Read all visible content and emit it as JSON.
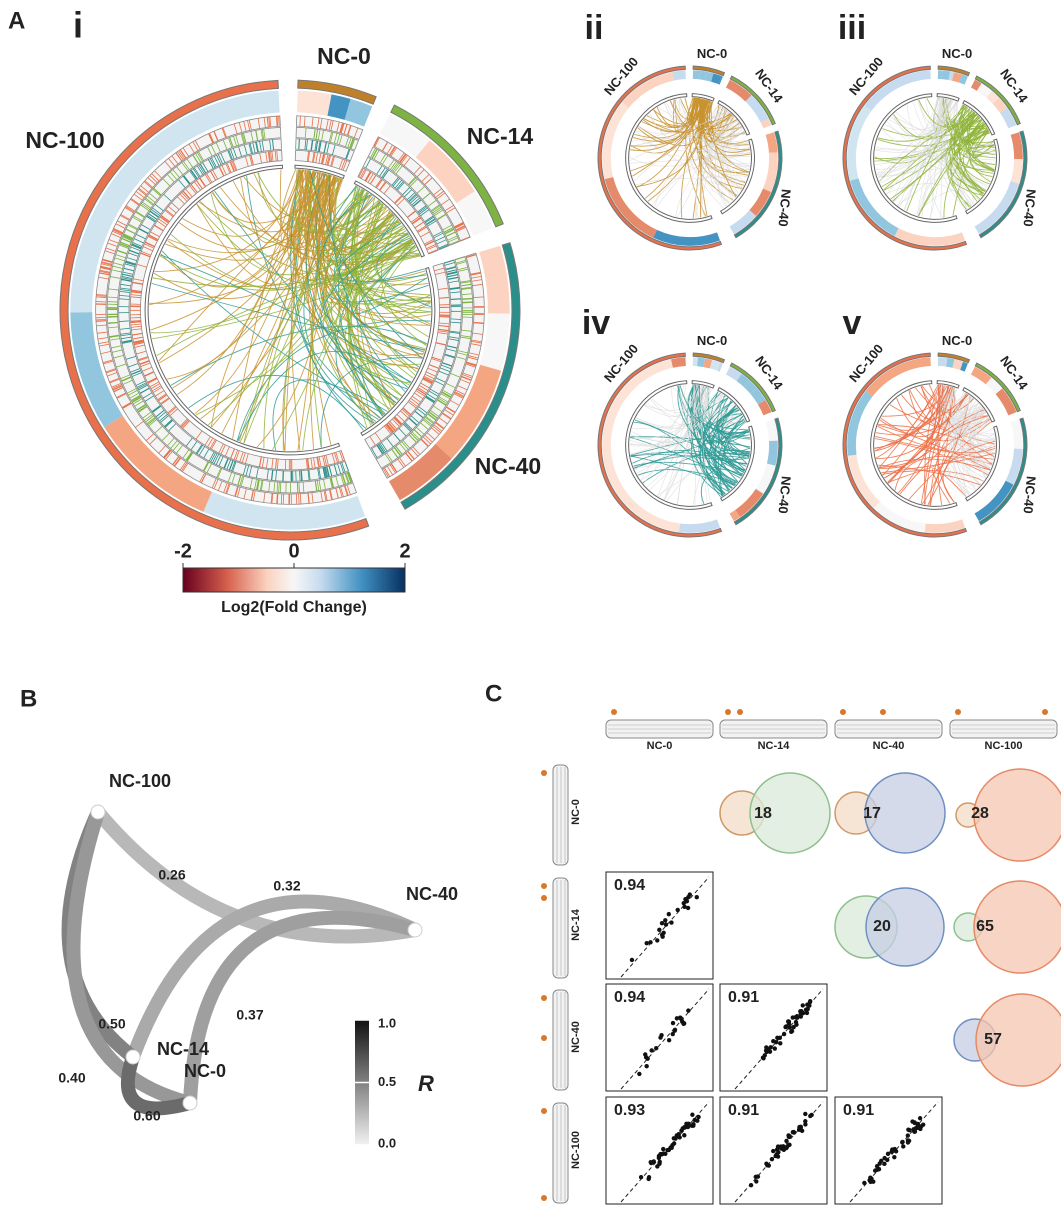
{
  "panel_a": {
    "letter": "A",
    "circos": [
      {
        "label": "i",
        "sectors": [
          "NC-0",
          "NC-14",
          "NC-40",
          "NC-100"
        ]
      },
      {
        "label": "ii",
        "sectors": [
          "NC-0",
          "NC-14",
          "NC-40",
          "NC-100"
        ]
      },
      {
        "label": "iii",
        "sectors": [
          "NC-0",
          "NC-14",
          "NC-40",
          "NC-100"
        ]
      },
      {
        "label": "iv",
        "sectors": [
          "NC-0",
          "NC-14",
          "NC-40",
          "NC-100"
        ]
      },
      {
        "label": "v",
        "sectors": [
          "NC-0",
          "NC-14",
          "NC-40",
          "NC-100"
        ]
      }
    ],
    "colorbar": {
      "title": "Log2(Fold Change)",
      "lim": [
        -2,
        2
      ],
      "ticks": [
        -2,
        0,
        2
      ]
    }
  },
  "panel_b": {
    "letter": "B",
    "nodes": [
      "NC-100",
      "NC-40",
      "NC-14",
      "NC-0"
    ],
    "edges": [
      0.26,
      0.32,
      {
        "value": 0.5,
        "label": "0.50"
      },
      0.37,
      {
        "value": 0.4,
        "label": "0.40"
      },
      {
        "value": 0.6,
        "label": "0.60"
      }
    ],
    "scale": {
      "title": "R",
      "lim": [
        0,
        1
      ],
      "ticks": [
        {
          "value": 1,
          "label": "1.0"
        },
        0.5,
        {
          "value": 0,
          "label": "0.0"
        }
      ]
    }
  },
  "panel_c": {
    "letter": "C",
    "columns": [
      "NC-0",
      "NC-14",
      "NC-40",
      "NC-100"
    ],
    "rows": [
      "NC-0",
      "NC-14",
      "NC-40",
      "NC-100"
    ],
    "venn": [
      18,
      17,
      28,
      20,
      65,
      57
    ],
    "correlations": [
      0.94,
      0.94,
      0.91,
      0.93,
      0.91,
      0.91
    ]
  }
}
